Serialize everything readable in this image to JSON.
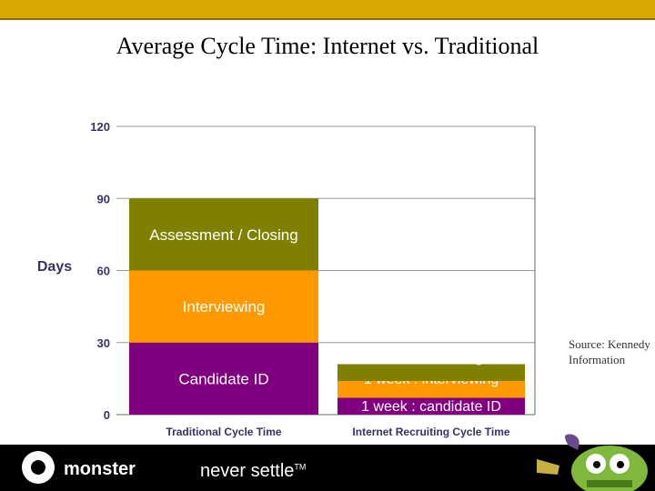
{
  "slide": {
    "title": "Average Cycle Time: Internet vs. Traditional",
    "source": "Source: Kennedy Information",
    "footer": {
      "logo_text": "monster",
      "tagline": "never settle",
      "tagline_mark": "TM"
    }
  },
  "colors": {
    "candidate": "#800080",
    "interviewing": "#ff9900",
    "closing": "#808000",
    "top_bar": "#d9a800"
  },
  "chart_data": {
    "type": "bar",
    "stacked": true,
    "categories": [
      "Traditional Cycle Time",
      "Internet Recruiting Cycle Time"
    ],
    "ylabel": "Days",
    "ylim": [
      0,
      120
    ],
    "yticks": [
      0,
      30,
      60,
      90,
      120
    ],
    "grid": true,
    "series": [
      {
        "values": [
          30,
          7
        ],
        "color": "#800080",
        "labels": [
          "Candidate ID",
          "1 week : candidate ID"
        ]
      },
      {
        "values": [
          30,
          7
        ],
        "color": "#ff9900",
        "labels": [
          "Interviewing",
          "1 week : interviewing"
        ]
      },
      {
        "values": [
          30,
          7
        ],
        "color": "#808000",
        "labels": [
          "Assessment / Closing",
          "1 week : closing"
        ]
      }
    ]
  }
}
